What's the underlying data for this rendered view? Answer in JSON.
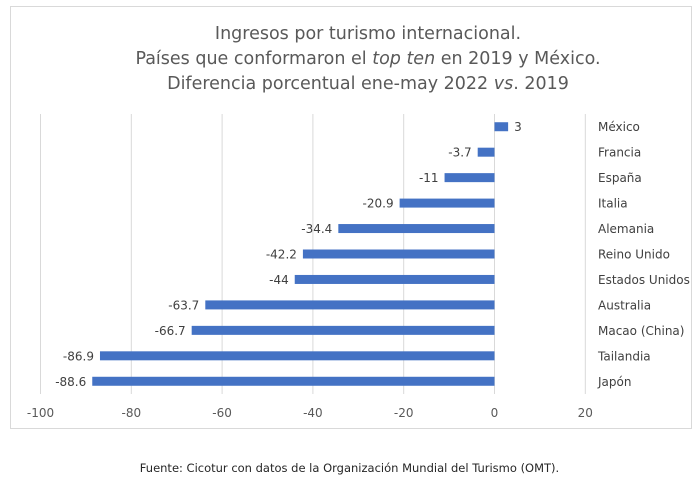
{
  "chart_data": {
    "type": "bar",
    "orientation": "horizontal",
    "title_lines": [
      {
        "parts": [
          {
            "text": "Ingresos por turismo internacional.",
            "italic": false
          }
        ]
      },
      {
        "parts": [
          {
            "text": "Países que conformaron el ",
            "italic": false
          },
          {
            "text": "top ten",
            "italic": true
          },
          {
            "text": " en 2019 y México.",
            "italic": false
          }
        ]
      },
      {
        "parts": [
          {
            "text": "Diferencia porcentual ene-may 2022 ",
            "italic": false
          },
          {
            "text": "vs",
            "italic": true
          },
          {
            "text": ". 2019",
            "italic": false
          }
        ]
      }
    ],
    "categories": [
      "México",
      "Francia",
      "España",
      "Italia",
      "Alemania",
      "Reino Unido",
      "Estados Unidos",
      "Australia",
      "Macao (China)",
      "Tailandia",
      "Japón"
    ],
    "values": [
      3,
      -3.7,
      -11,
      -20.9,
      -34.4,
      -42.2,
      -44,
      -63.7,
      -66.7,
      -86.9,
      -88.6
    ],
    "data_labels": [
      "3",
      "-3.7",
      "-11",
      "-20.9",
      "-34.4",
      "-42.2",
      "-44",
      "-63.7",
      "-66.7",
      "-86.9",
      "-88.6"
    ],
    "xlim": [
      -100,
      20
    ],
    "x_ticks": [
      -100,
      -80,
      -60,
      -40,
      -20,
      0,
      20
    ],
    "x_tick_labels": [
      "-100",
      "-80",
      "-60",
      "-40",
      "-20",
      "0",
      "20"
    ],
    "xlabel": "",
    "ylabel": "",
    "grid": true,
    "legend": "none",
    "bar_color": "#4472C4",
    "grid_color": "#d9d9d9"
  },
  "footer": {
    "source": "Fuente: Cicotur con datos de la Organización Mundial del Turismo (OMT)."
  }
}
